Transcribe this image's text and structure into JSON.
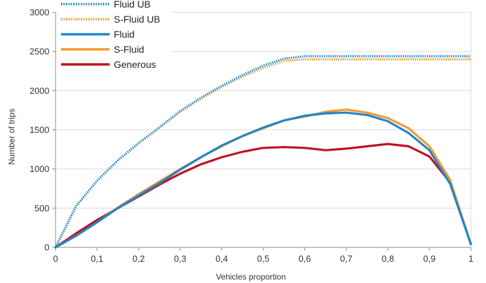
{
  "chart_data": {
    "type": "line",
    "title": "",
    "xlabel": "Vehicles proportion",
    "ylabel": "Number of trips",
    "xlim": [
      0,
      1
    ],
    "ylim": [
      0,
      3000
    ],
    "x_ticks": [
      0,
      0.1,
      0.2,
      0.3,
      0.4,
      0.5,
      0.6,
      0.7,
      0.8,
      0.9,
      1
    ],
    "x_tick_labels": [
      "0",
      "0,1",
      "0,2",
      "0,3",
      "0,4",
      "0,5",
      "0,6",
      "0,7",
      "0,8",
      "0,9",
      "1"
    ],
    "y_ticks": [
      0,
      500,
      1000,
      1500,
      2000,
      2500,
      3000
    ],
    "y_tick_labels": [
      "0",
      "500",
      "1000",
      "1500",
      "2000",
      "2500",
      "3000"
    ],
    "grid": "horizontal",
    "legend_position": "top-left",
    "x": [
      0,
      0.05,
      0.1,
      0.15,
      0.2,
      0.25,
      0.3,
      0.35,
      0.4,
      0.45,
      0.5,
      0.55,
      0.6,
      0.65,
      0.7,
      0.75,
      0.8,
      0.85,
      0.9,
      0.95,
      1
    ],
    "series": [
      {
        "name": "Fluid UB",
        "color": "#1f86c8",
        "style": "dotted",
        "values": [
          0,
          530,
          850,
          1110,
          1330,
          1530,
          1740,
          1910,
          2060,
          2200,
          2320,
          2410,
          2440,
          2440,
          2440,
          2440,
          2440,
          2440,
          2440,
          2440,
          2440
        ]
      },
      {
        "name": "S-Fluid UB",
        "color": "#f39a2b",
        "style": "dotted",
        "values": [
          0,
          530,
          850,
          1110,
          1330,
          1530,
          1730,
          1900,
          2050,
          2180,
          2290,
          2380,
          2400,
          2400,
          2400,
          2400,
          2400,
          2400,
          2400,
          2400,
          2400
        ]
      },
      {
        "name": "Fluid",
        "color": "#1f86c8",
        "style": "solid",
        "values": [
          0,
          150,
          320,
          500,
          660,
          820,
          990,
          1150,
          1300,
          1420,
          1530,
          1620,
          1680,
          1710,
          1720,
          1690,
          1610,
          1460,
          1240,
          810,
          40
        ]
      },
      {
        "name": "S-Fluid",
        "color": "#f39a2b",
        "style": "solid",
        "values": [
          0,
          150,
          320,
          510,
          680,
          840,
          1000,
          1150,
          1290,
          1420,
          1520,
          1620,
          1670,
          1730,
          1760,
          1720,
          1650,
          1520,
          1290,
          860,
          40
        ]
      },
      {
        "name": "Generous",
        "color": "#c0111f",
        "style": "solid",
        "values": [
          0,
          180,
          350,
          500,
          650,
          800,
          940,
          1060,
          1150,
          1220,
          1270,
          1280,
          1270,
          1240,
          1260,
          1290,
          1320,
          1290,
          1160,
          830,
          40
        ]
      }
    ]
  }
}
